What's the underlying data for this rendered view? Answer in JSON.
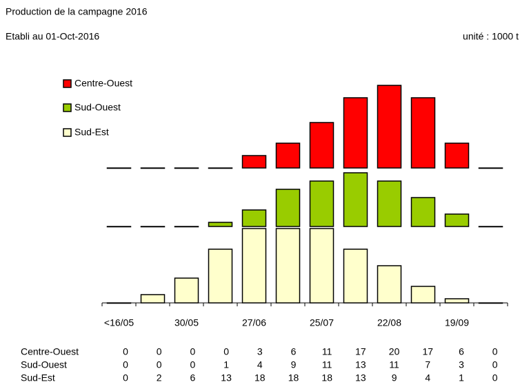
{
  "chart_data": {
    "type": "bar",
    "subtitle": "Production de la campagne 2016",
    "date_note": "Etabli au 01-Oct-2016",
    "unit_note": "unité : 1000 t",
    "categories": [
      "<16/05",
      null,
      "30/05",
      null,
      "27/06",
      null,
      "25/07",
      null,
      "22/08",
      null,
      "19/09",
      null
    ],
    "series": [
      {
        "name": "Centre-Ouest",
        "color": "#ff0000",
        "values": [
          0,
          0,
          0,
          0,
          3,
          6,
          11,
          17,
          20,
          17,
          6,
          0
        ]
      },
      {
        "name": "Sud-Ouest",
        "color": "#99cc00",
        "values": [
          0,
          0,
          0,
          1,
          4,
          9,
          11,
          13,
          11,
          7,
          3,
          0
        ]
      },
      {
        "name": "Sud-Est",
        "color": "#ffffcc",
        "values": [
          0,
          2,
          6,
          13,
          18,
          18,
          18,
          13,
          9,
          4,
          1,
          0
        ]
      }
    ]
  }
}
